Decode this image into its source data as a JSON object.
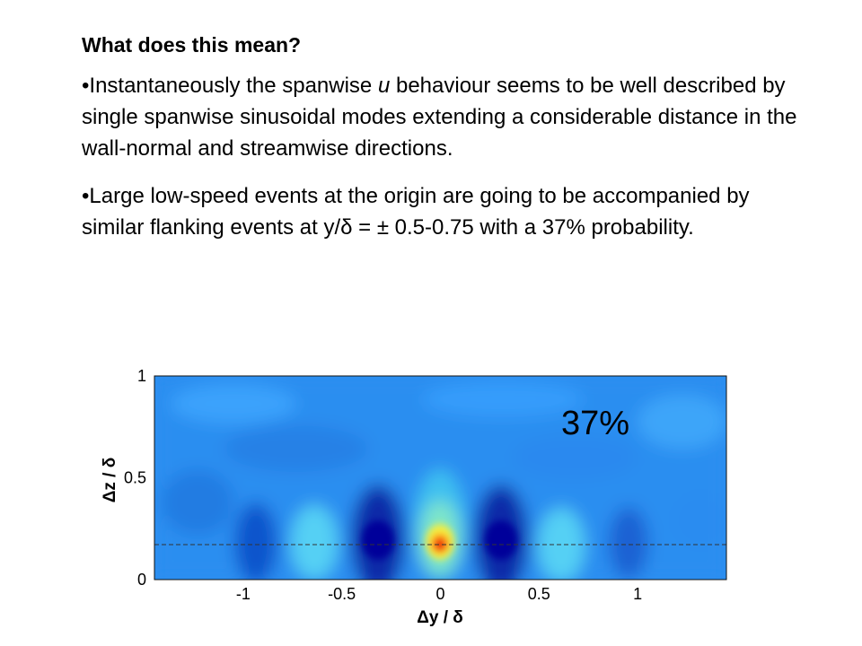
{
  "slide": {
    "heading": "What does this mean?",
    "bullet1": {
      "prefix": "•Instantaneously the spanwise ",
      "italic": "u",
      "suffix": " behaviour seems to be well described by single spanwise sinusoidal modes extending a considerable distance in the wall-normal and streamwise directions."
    },
    "bullet2": "•Large low-speed events at the origin are going to be accompanied by similar flanking events at y/δ = ± 0.5-0.75 with a 37% probability."
  },
  "chart_data": {
    "type": "heatmap",
    "title": "",
    "xlabel": "Δy / δ",
    "ylabel": "Δz / δ",
    "annotation": "37%",
    "xlim": [
      -1.45,
      1.45
    ],
    "ylim": [
      0,
      1
    ],
    "x_ticks": [
      "-1",
      "-0.5",
      "0",
      "0.5",
      "1"
    ],
    "x_tick_values": [
      -1,
      -0.5,
      0,
      0.5,
      1
    ],
    "y_ticks": [
      "0",
      "0.5",
      "1"
    ],
    "y_tick_values": [
      0,
      0.5,
      1
    ],
    "reference_line_z": 0.15,
    "background_color": "#2c8ef0",
    "features": [
      {
        "label": "peak",
        "y": 0.0,
        "z": 0.15,
        "value": 1.0
      },
      {
        "label": "low",
        "y": -0.3,
        "z": 0.15,
        "value": -1.0
      },
      {
        "label": "low",
        "y": 0.33,
        "z": 0.15,
        "value": -1.0
      },
      {
        "label": "high",
        "y": -0.6,
        "z": 0.15,
        "value": 0.35
      },
      {
        "label": "high",
        "y": 0.68,
        "z": 0.15,
        "value": 0.35
      },
      {
        "label": "low",
        "y": -0.93,
        "z": 0.15,
        "value": -0.45
      },
      {
        "label": "low",
        "y": 0.98,
        "z": 0.15,
        "value": -0.45
      }
    ]
  }
}
